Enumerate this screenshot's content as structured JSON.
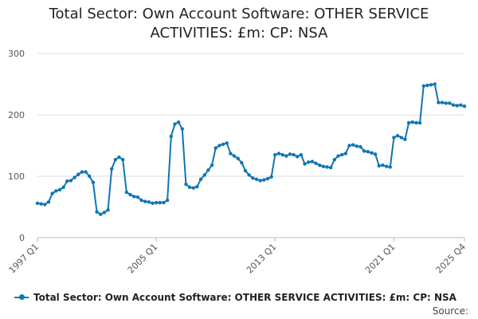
{
  "chart_data": {
    "type": "line",
    "title_lines": [
      "Total Sector: Own Account Software: OTHER SERVICE",
      "ACTIVITIES: £m: CP: NSA"
    ],
    "xlabel": "",
    "ylabel": "",
    "ylim": [
      0,
      300
    ],
    "yticks": [
      0,
      100,
      200,
      300
    ],
    "grid": true,
    "legend_position": "bottom",
    "x_tick_labels": [
      "1997 Q1",
      "2005 Q1",
      "2013 Q1",
      "2021 Q1",
      "2025 Q4"
    ],
    "x_tick_index": [
      0,
      32,
      64,
      96,
      115
    ],
    "series": [
      {
        "name": "Total Sector: Own Account Software: OTHER SERVICE ACTIVITIES: £m: CP: NSA",
        "color": "#0f76b3",
        "values": [
          56,
          55,
          54,
          58,
          72,
          76,
          78,
          82,
          92,
          93,
          98,
          103,
          107,
          107,
          100,
          90,
          42,
          38,
          41,
          45,
          112,
          127,
          131,
          127,
          74,
          70,
          67,
          66,
          61,
          59,
          58,
          56,
          57,
          57,
          57,
          61,
          165,
          185,
          188,
          177,
          87,
          82,
          81,
          83,
          95,
          102,
          110,
          118,
          146,
          150,
          152,
          154,
          137,
          133,
          129,
          122,
          109,
          102,
          97,
          95,
          93,
          94,
          96,
          99,
          135,
          137,
          135,
          133,
          136,
          135,
          132,
          135,
          120,
          123,
          124,
          121,
          118,
          116,
          115,
          114,
          127,
          133,
          135,
          137,
          150,
          151,
          149,
          148,
          141,
          140,
          138,
          136,
          117,
          118,
          116,
          115,
          163,
          166,
          163,
          160,
          187,
          188,
          187,
          187,
          247,
          248,
          249,
          250,
          220,
          220,
          219,
          219,
          216,
          215,
          216,
          214
        ]
      }
    ]
  },
  "legend": {
    "label": "Total Sector: Own Account Software: OTHER SERVICE ACTIVITIES: £m: CP: NSA"
  },
  "source": {
    "label": "Source:"
  }
}
